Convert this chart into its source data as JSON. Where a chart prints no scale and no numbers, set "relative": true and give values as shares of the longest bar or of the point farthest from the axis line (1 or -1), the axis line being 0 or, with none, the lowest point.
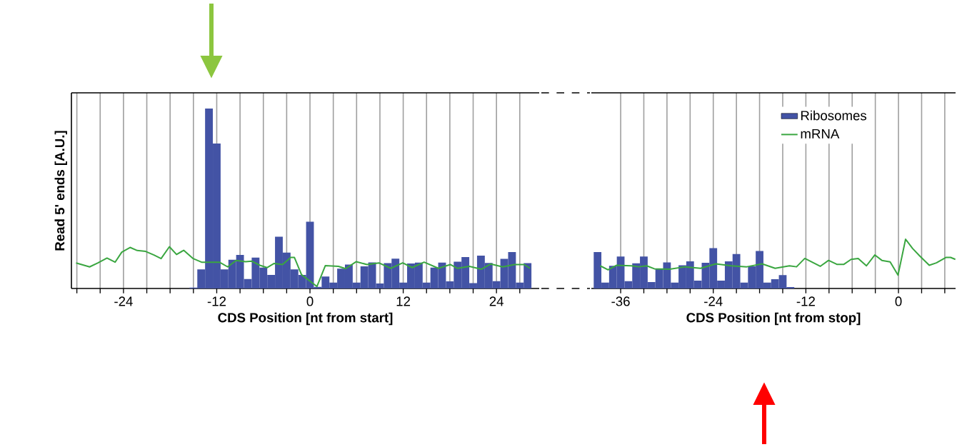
{
  "chart_data": [
    {
      "type": "bar",
      "relative": true,
      "xlabel": "CDS Position [nt from start]",
      "ylabel": "Read 5' ends [A.U.]",
      "grid": "x",
      "xlim": [
        -30.7,
        29.5
      ],
      "xticks": [
        {
          "value": -30,
          "label": null
        },
        {
          "value": -27,
          "label": null
        },
        -24,
        {
          "value": -21,
          "label": null
        },
        {
          "value": -18,
          "label": null
        },
        {
          "value": -15,
          "label": null
        },
        -12,
        {
          "value": -9,
          "label": null
        },
        {
          "value": -6,
          "label": null
        },
        {
          "value": -3,
          "label": null
        },
        0,
        {
          "value": 3,
          "label": null
        },
        {
          "value": 6,
          "label": null
        },
        {
          "value": 9,
          "label": null
        },
        12,
        {
          "value": 15,
          "label": null
        },
        {
          "value": 18,
          "label": null
        },
        {
          "value": 21,
          "label": null
        },
        24,
        {
          "value": 27,
          "label": null
        }
      ],
      "series": [
        {
          "color": "#4353a5",
          "x": [
            -15,
            -14,
            -13,
            -12,
            -11,
            -10,
            -9,
            -8,
            -7,
            -6,
            -5,
            -4,
            -3,
            -2,
            -1,
            0,
            1,
            2,
            3,
            4,
            5,
            6,
            7,
            8,
            9,
            10,
            11,
            12,
            13,
            14,
            15,
            16,
            17,
            18,
            19,
            20,
            21,
            22,
            23,
            24,
            25,
            26,
            27,
            28
          ],
          "values": [
            0.005,
            0.106,
            1.0,
            0.805,
            0.106,
            0.16,
            0.186,
            0.053,
            0.172,
            0.116,
            0.075,
            0.288,
            0.199,
            0.106,
            0.075,
            0.371,
            0.009,
            0.066,
            0.033,
            0.11,
            0.133,
            0.033,
            0.123,
            0.145,
            0.028,
            0.141,
            0.166,
            0.033,
            0.139,
            0.144,
            0.033,
            0.116,
            0.144,
            0.04,
            0.149,
            0.175,
            0.03,
            0.182,
            0.142,
            0.041,
            0.165,
            0.202,
            0.033,
            0.141
          ]
        },
        {
          "type": "line",
          "color": "#3aa640",
          "x": [
            -30.1,
            -28.36,
            -27.28,
            -26.12,
            -25.08,
            -24.22,
            -23.15,
            -22.23,
            -21.15,
            -20.08,
            -19.16,
            -18.09,
            -17.17,
            -16.25,
            -15.03,
            -13.95,
            -11.66,
            -10.59,
            -9.51,
            -8.29,
            -7.52,
            -6.45,
            -5.53,
            -4.61,
            -3.54,
            -2.47,
            -2.01,
            -1.09,
            0.9,
            1.98,
            3.66,
            4.58,
            5.96,
            7.34,
            8.87,
            10.4,
            11.93,
            13.16,
            14.69,
            16.53,
            18.06,
            18.98,
            20.51,
            22.04,
            23.27,
            24.8,
            26.33,
            27.56,
            28.32
          ],
          "values": [
            0.142,
            0.12,
            0.142,
            0.169,
            0.146,
            0.202,
            0.228,
            0.211,
            0.206,
            0.186,
            0.166,
            0.232,
            0.189,
            0.212,
            0.166,
            0.146,
            0.146,
            0.12,
            0.156,
            0.149,
            0.152,
            0.129,
            0.116,
            0.139,
            0.133,
            0.173,
            0.173,
            0.077,
            0.011,
            0.127,
            0.123,
            0.11,
            0.149,
            0.133,
            0.142,
            0.112,
            0.142,
            0.116,
            0.146,
            0.112,
            0.133,
            0.112,
            0.123,
            0.107,
            0.136,
            0.12,
            0.133,
            0.133,
            0.112
          ]
        }
      ]
    },
    {
      "type": "bar",
      "relative": true,
      "xlabel": "CDS Position [nt from stop]",
      "grid": "x",
      "legend": "top right",
      "xlim": [
        -39.8,
        7.4
      ],
      "xticks": [
        -36,
        {
          "value": -33,
          "label": null
        },
        {
          "value": -30,
          "label": null
        },
        {
          "value": -27,
          "label": null
        },
        -24,
        {
          "value": -21,
          "label": null
        },
        {
          "value": -18,
          "label": null
        },
        {
          "value": -15,
          "label": null
        },
        -12,
        {
          "value": -9,
          "label": null
        },
        {
          "value": -6,
          "label": null
        },
        {
          "value": -3,
          "label": null
        },
        0,
        {
          "value": 3,
          "label": null
        },
        {
          "value": 6,
          "label": null
        }
      ],
      "series": [
        {
          "name": "Ribosomes",
          "color": "#4353a5",
          "x": [
            -39,
            -38,
            -37,
            -36,
            -35,
            -34,
            -33,
            -32,
            -31,
            -30,
            -29,
            -28,
            -27,
            -26,
            -25,
            -24,
            -23,
            -22,
            -21,
            -20,
            -19,
            -18,
            -17,
            -16,
            -15,
            -14
          ],
          "values": [
            0.74,
            0.12,
            0.46,
            0.65,
            0.15,
            0.51,
            0.65,
            0.13,
            0.4,
            0.53,
            0.12,
            0.47,
            0.55,
            0.16,
            0.52,
            0.82,
            0.16,
            0.55,
            0.7,
            0.12,
            0.45,
            0.76,
            0.12,
            0.19,
            0.27,
            0.03
          ]
        },
        {
          "type": "line",
          "name": "mRNA",
          "color": "#3aa640",
          "x": [
            -38.65,
            -37.63,
            -36.56,
            -34.62,
            -33.64,
            -32.63,
            -31.64,
            -29.65,
            -27.65,
            -25.65,
            -23.66,
            -21.66,
            -19.66,
            -17.67,
            -15.98,
            -14.13,
            -13.21,
            -12.14,
            -10.14,
            -9.06,
            -7.99,
            -7.07,
            -6.14,
            -5.22,
            -4.15,
            -3.07,
            -2.15,
            -1.08,
            -0.06,
            0.92,
            1.84,
            2.76,
            3.99,
            4.91,
            6.14,
            6.76,
            7.37
          ],
          "values": [
            0.46,
            0.38,
            0.47,
            0.46,
            0.44,
            0.46,
            0.4,
            0.39,
            0.44,
            0.41,
            0.5,
            0.46,
            0.44,
            0.5,
            0.41,
            0.46,
            0.44,
            0.61,
            0.45,
            0.57,
            0.49,
            0.49,
            0.59,
            0.61,
            0.46,
            0.68,
            0.57,
            0.54,
            0.27,
            1,
            0.81,
            0.66,
            0.47,
            0.52,
            0.63,
            0.63,
            0.59
          ]
        }
      ]
    }
  ]
}
